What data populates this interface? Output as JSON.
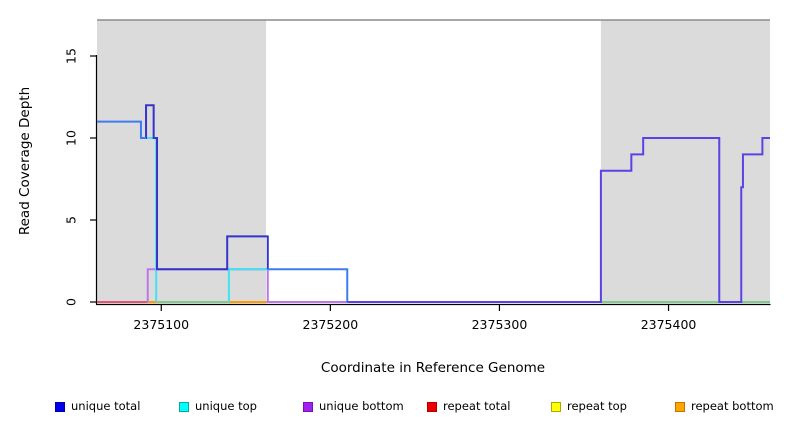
{
  "axes": {
    "x_label": "Coordinate in Reference Genome",
    "y_label": "Read Coverage Depth"
  },
  "legend": {
    "items": [
      {
        "label": "unique total",
        "color": "#0000EE",
        "border": "#0000AA"
      },
      {
        "label": "unique top",
        "color": "#00FFFF",
        "border": "#00AAAA"
      },
      {
        "label": "unique bottom",
        "color": "#A020F0",
        "border": "#7711BB"
      },
      {
        "label": "repeat total",
        "color": "#EE0000",
        "border": "#AA0000"
      },
      {
        "label": "repeat top",
        "color": "#FFFF00",
        "border": "#AAAA00"
      },
      {
        "label": "repeat bottom",
        "color": "#FFA500",
        "border": "#BB7700"
      }
    ]
  },
  "chart_data": {
    "type": "line",
    "title": "",
    "xlabel": "Coordinate in Reference Genome",
    "ylabel": "Read Coverage Depth",
    "xlim": [
      2375062,
      2375460
    ],
    "ylim": [
      0,
      17.2
    ],
    "x_ticks": [
      2375100,
      2375200,
      2375300,
      2375400
    ],
    "y_ticks": [
      0,
      5,
      10,
      15
    ],
    "grid": "off",
    "legend_position": "bottom",
    "shaded_regions": [
      {
        "name": "repeat-region-left",
        "x0": 2375062,
        "x1": 2375162,
        "color": "#DBDBDB"
      },
      {
        "name": "repeat-region-right",
        "x0": 2375360,
        "x1": 2375460,
        "color": "#DBDBDB"
      }
    ],
    "series": [
      {
        "name": "unique total",
        "legend_color": "#0000EE",
        "steps": [
          [
            2375062,
            11
          ],
          [
            2375088,
            10
          ],
          [
            2375091,
            12
          ],
          [
            2375095,
            10
          ],
          [
            2375097,
            2
          ],
          [
            2375139,
            4
          ],
          [
            2375163,
            2
          ],
          [
            2375210,
            0
          ],
          [
            2375360,
            8
          ],
          [
            2375378,
            9
          ],
          [
            2375385,
            10
          ],
          [
            2375430,
            0
          ],
          [
            2375443,
            7
          ],
          [
            2375444,
            9
          ],
          [
            2375455,
            10
          ],
          [
            2375460,
            10
          ]
        ]
      },
      {
        "name": "unique top",
        "legend_color": "#00FFFF",
        "steps": [
          [
            2375062,
            11
          ],
          [
            2375088,
            10
          ],
          [
            2375097,
            0
          ],
          [
            2375140,
            2
          ],
          [
            2375210,
            0
          ],
          [
            2375460,
            0
          ]
        ]
      },
      {
        "name": "unique bottom",
        "legend_color": "#A020F0",
        "steps": [
          [
            2375062,
            0
          ],
          [
            2375092,
            2
          ],
          [
            2375163,
            0
          ],
          [
            2375360,
            8
          ],
          [
            2375378,
            9
          ],
          [
            2375385,
            10
          ],
          [
            2375430,
            0
          ],
          [
            2375443,
            7
          ],
          [
            2375444,
            9
          ],
          [
            2375455,
            10
          ],
          [
            2375460,
            10
          ]
        ]
      },
      {
        "name": "repeat total",
        "legend_color": "#EE0000",
        "steps": [
          [
            2375062,
            0
          ],
          [
            2375460,
            0
          ]
        ]
      },
      {
        "name": "repeat top",
        "legend_color": "#FFFF00",
        "steps": [
          [
            2375062,
            0
          ],
          [
            2375460,
            0
          ]
        ]
      },
      {
        "name": "repeat bottom",
        "legend_color": "#FFA500",
        "steps": [
          [
            2375062,
            0
          ],
          [
            2375460,
            0
          ]
        ]
      }
    ],
    "rendered_lines": [
      {
        "name": "zero-line-red-left",
        "color": "#E05575",
        "points": [
          [
            2375062,
            0
          ],
          [
            2375092,
            0
          ]
        ]
      },
      {
        "name": "zero-line-orange-1",
        "color": "#FF9A00",
        "points": [
          [
            2375092,
            0
          ],
          [
            2375098,
            0
          ]
        ]
      },
      {
        "name": "zero-line-green-left",
        "color": "#7CCB8C",
        "points": [
          [
            2375098,
            0
          ],
          [
            2375140,
            0
          ]
        ]
      },
      {
        "name": "zero-line-orange-2",
        "color": "#FF9A00",
        "points": [
          [
            2375140,
            0
          ],
          [
            2375163,
            0
          ]
        ]
      },
      {
        "name": "zero-line-red-mid",
        "color": "#E05575",
        "points": [
          [
            2375163,
            0
          ],
          [
            2375210,
            0
          ]
        ]
      },
      {
        "name": "zero-line-green-right",
        "color": "#7CCB8C",
        "points": [
          [
            2375360,
            0
          ],
          [
            2375460,
            0
          ]
        ]
      },
      {
        "name": "unique-bottom-line",
        "color": "#BB77E8",
        "points": [
          [
            2375092,
            0
          ],
          [
            2375092,
            2
          ],
          [
            2375163,
            2
          ],
          [
            2375163,
            0
          ],
          [
            2375360,
            0
          ]
        ]
      },
      {
        "name": "unique-top-drop",
        "color": "#3FE3F2",
        "points": [
          [
            2375091,
            10
          ],
          [
            2375097,
            10
          ],
          [
            2375097,
            0
          ]
        ]
      },
      {
        "name": "unique-top-step2",
        "color": "#3FE3F2",
        "points": [
          [
            2375140,
            0
          ],
          [
            2375140,
            2
          ],
          [
            2375163,
            2
          ]
        ]
      },
      {
        "name": "unique-total-left",
        "color": "#3434CC",
        "points": [
          [
            2375088,
            10
          ],
          [
            2375091,
            10
          ],
          [
            2375091,
            12
          ],
          [
            2375095.5,
            12
          ],
          [
            2375095.5,
            10
          ],
          [
            2375097.5,
            10
          ],
          [
            2375097.5,
            2
          ],
          [
            2375139,
            2
          ],
          [
            2375139,
            4
          ],
          [
            2375163,
            4
          ],
          [
            2375163,
            2
          ]
        ]
      },
      {
        "name": "overlap-total-top-11",
        "color": "#3D7BF0",
        "points": [
          [
            2375062,
            11
          ],
          [
            2375088,
            11
          ],
          [
            2375088,
            10
          ],
          [
            2375091,
            10
          ]
        ]
      },
      {
        "name": "overlap-total-top-2",
        "color": "#3D7BF0",
        "points": [
          [
            2375163,
            2
          ],
          [
            2375210,
            2
          ],
          [
            2375210,
            0
          ]
        ]
      },
      {
        "name": "overlap-total-bottom-right",
        "color": "#5A43E6",
        "points": [
          [
            2375210,
            0
          ],
          [
            2375360,
            0
          ],
          [
            2375360,
            8
          ],
          [
            2375378,
            8
          ],
          [
            2375378,
            9
          ],
          [
            2375385,
            9
          ],
          [
            2375385,
            10
          ],
          [
            2375430,
            10
          ],
          [
            2375430,
            0
          ],
          [
            2375443,
            0
          ],
          [
            2375443,
            7
          ],
          [
            2375444,
            7
          ],
          [
            2375444,
            9
          ],
          [
            2375455.5,
            9
          ],
          [
            2375455.5,
            10
          ],
          [
            2375460,
            10
          ]
        ]
      }
    ]
  }
}
